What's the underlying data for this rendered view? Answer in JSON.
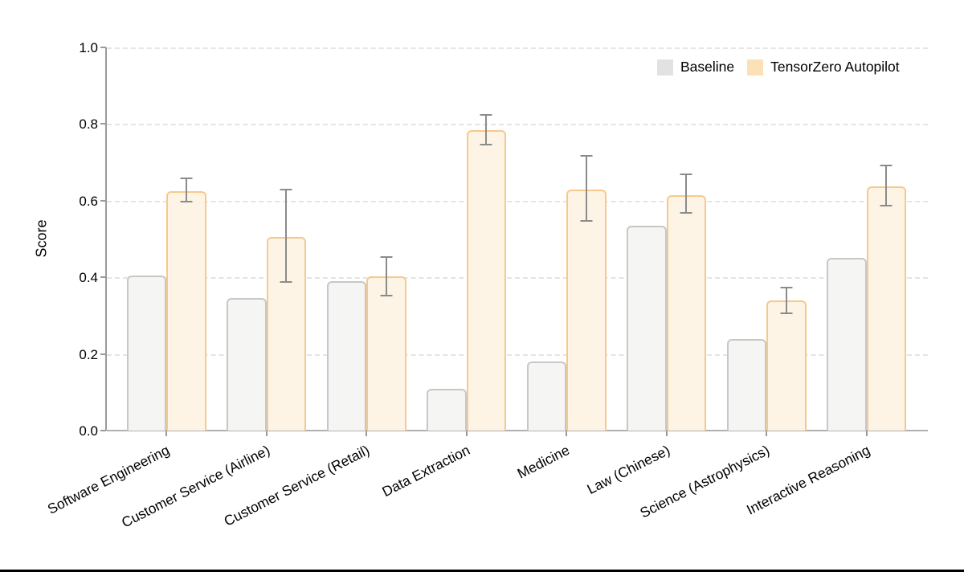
{
  "page": {
    "background": "#ffffff",
    "bottom_rule_color": "#000000"
  },
  "legend": {
    "position": "top-right",
    "items": [
      {
        "label": "Baseline",
        "swatch_color": "#e2e2e2"
      },
      {
        "label": "TensorZero Autopilot",
        "swatch_color": "#fce0b6"
      }
    ]
  },
  "chart_data": {
    "type": "bar",
    "title": "",
    "xlabel": "",
    "ylabel": "Score",
    "ylim": [
      0.0,
      1.0
    ],
    "yticks": [
      "0.0",
      "0.2",
      "0.4",
      "0.6",
      "0.8",
      "1.0"
    ],
    "grid": "horizontal-dashed",
    "legend_position": "top-right-inside",
    "categories": [
      "Software Engineering",
      "Customer Service (Airline)",
      "Customer Service (Retail)",
      "Data Extraction",
      "Medicine",
      "Law (Chinese)",
      "Science (Astrophysics)",
      "Interactive Reasoning"
    ],
    "series": [
      {
        "name": "Baseline",
        "values": [
          0.405,
          0.345,
          0.39,
          0.11,
          0.18,
          0.535,
          0.24,
          0.45
        ],
        "fill": "#f5f5f4",
        "border": "#c7c7c7"
      },
      {
        "name": "TensorZero Autopilot",
        "values": [
          0.625,
          0.505,
          0.403,
          0.785,
          0.63,
          0.615,
          0.34,
          0.638
        ],
        "error_low": [
          0.595,
          0.385,
          0.35,
          0.745,
          0.545,
          0.565,
          0.305,
          0.585
        ],
        "error_high": [
          0.66,
          0.63,
          0.455,
          0.825,
          0.72,
          0.67,
          0.375,
          0.693
        ],
        "fill": "#fdf4e6",
        "border": "#f8c88a"
      }
    ],
    "error_bar_color": "#8b8b8b"
  }
}
